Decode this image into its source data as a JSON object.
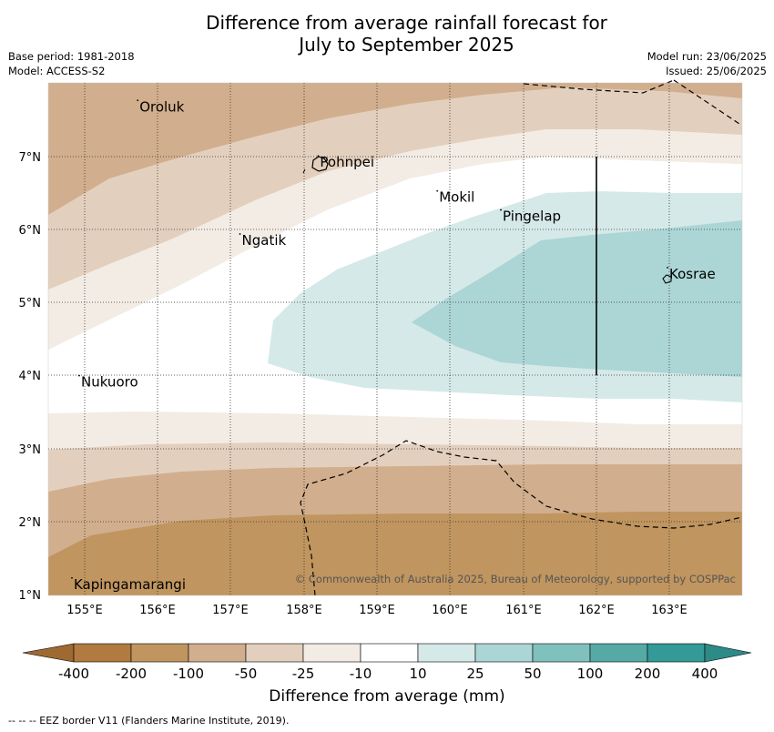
{
  "title": {
    "line1": "Difference from average rainfall forecast for",
    "line2": "July to September 2025"
  },
  "meta": {
    "base_period": "Base period: 1981-2018",
    "model": "Model: ACCESS-S2",
    "model_run": "Model run: 23/06/2025",
    "issued": "Issued: 25/06/2025"
  },
  "axes": {
    "lon_ticks": [
      "155°E",
      "156°E",
      "157°E",
      "158°E",
      "159°E",
      "160°E",
      "161°E",
      "162°E",
      "163°E"
    ],
    "lat_ticks": [
      "7°N",
      "6°N",
      "5°N",
      "4°N",
      "3°N",
      "2°N",
      "1°N"
    ]
  },
  "places": [
    {
      "name": "Oroluk",
      "lon": 155.75,
      "lat": 7.62
    },
    {
      "name": "Pohnpei",
      "lon": 158.22,
      "lat": 6.86
    },
    {
      "name": "Mokil",
      "lon": 159.85,
      "lat": 6.38
    },
    {
      "name": "Pingelap",
      "lon": 160.72,
      "lat": 6.12
    },
    {
      "name": "Ngatik",
      "lon": 157.15,
      "lat": 5.79
    },
    {
      "name": "Kosrae",
      "lon": 163.0,
      "lat": 5.33
    },
    {
      "name": "Nukuoro",
      "lon": 154.95,
      "lat": 3.85
    },
    {
      "name": "Kapingamarangi",
      "lon": 154.85,
      "lat": 1.08
    }
  ],
  "copyright": "© Commonwealth of Australia 2025, Bureau of Meteorology, supported by COSPPac",
  "colorbar": {
    "labels": [
      "-400",
      "-200",
      "-100",
      "-50",
      "-25",
      "-10",
      "10",
      "25",
      "50",
      "100",
      "200",
      "400"
    ],
    "colors": [
      "#b07a40",
      "#c0955f",
      "#d1ae8d",
      "#e3cfbd",
      "#f2ece5",
      "#ffffff",
      "#d4e9e8",
      "#acd5d5",
      "#80c0bd",
      "#56aaa6",
      "#339a97"
    ],
    "low_end_color": "#9e6a32",
    "high_end_color": "#2c8a87",
    "title": "Difference from average (mm)"
  },
  "footer": "--  --  -- EEZ border V11 (Flanders Marine Institute, 2019)."
}
